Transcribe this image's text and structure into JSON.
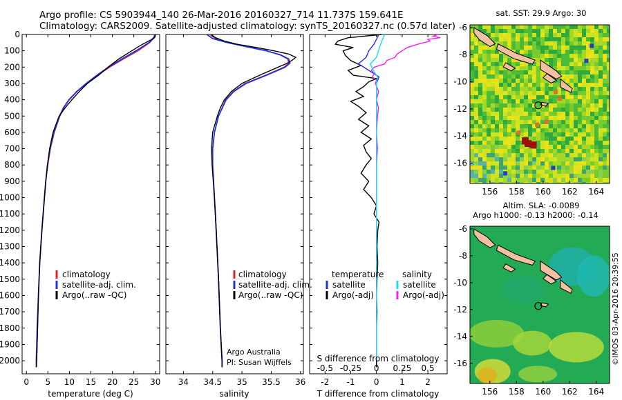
{
  "header": {
    "line1": "Argo profile: CS 5903944_140 26-Mar-2016 20160327_714 11.737S 159.641E",
    "line2": "Climatology: CARS2009. Satellite-adjusted climatology: synTS_20160327.nc (0.57d later)"
  },
  "colors": {
    "climatology": "#e02020",
    "satellite": "#1f2fe0",
    "argo": "#000000",
    "satellite_salinity": "#10e0f0",
    "argo_salinity_adj": "#f020f0"
  },
  "icons": [
    "map-marker-circle-icon"
  ],
  "credits": {
    "argo_australia": "Argo Australia",
    "pi": "PI: Susan Wijffels",
    "imos": "©IMOS 03-Apr-2016 20:39:55"
  },
  "chart_data": [
    {
      "type": "line",
      "name": "temperature-profile",
      "xlabel": "temperature (deg C)",
      "ylabel": "",
      "xlim": [
        -1,
        31
      ],
      "ylim": [
        2080,
        0
      ],
      "xticks": [
        "0",
        "5",
        "10",
        "15",
        "20",
        "25",
        "30"
      ],
      "yticks": [
        "0",
        "100",
        "200",
        "300",
        "400",
        "500",
        "600",
        "700",
        "800",
        "900",
        "1000",
        "1100",
        "1200",
        "1300",
        "1400",
        "1500",
        "1600",
        "1700",
        "1800",
        "1900",
        "2000"
      ],
      "legend": [
        "climatology",
        "satellite-adj. clim.",
        "Argo(..raw -QC)"
      ],
      "series": [
        {
          "name": "climatology",
          "y": [
            0,
            20,
            50,
            100,
            150,
            200,
            250,
            300,
            350,
            400,
            450,
            500,
            600,
            700,
            800,
            900,
            1000,
            1200,
            1400,
            1600,
            1800,
            2000
          ],
          "values": [
            29.8,
            29.7,
            28.7,
            26.0,
            22.6,
            19.4,
            16.6,
            14.0,
            11.8,
            10.0,
            8.7,
            7.8,
            6.5,
            5.6,
            5.0,
            4.5,
            4.2,
            3.6,
            3.1,
            2.8,
            2.6,
            2.4
          ]
        },
        {
          "name": "satellite-adj. clim.",
          "y": [
            0,
            20,
            50,
            100,
            150,
            200,
            250,
            300,
            350,
            400,
            450,
            500,
            600,
            700,
            800,
            900,
            1000,
            1200,
            1400,
            1600,
            1800,
            2000,
            2040
          ],
          "values": [
            29.9,
            29.8,
            28.5,
            25.5,
            22.2,
            19.1,
            16.4,
            13.9,
            11.7,
            9.9,
            8.6,
            7.7,
            6.4,
            5.5,
            4.9,
            4.5,
            4.2,
            3.6,
            3.1,
            2.8,
            2.5,
            2.3,
            2.3
          ]
        },
        {
          "name": "Argo(..raw -QC)",
          "y": [
            0,
            10,
            30,
            60,
            100,
            150,
            200,
            250,
            300,
            350,
            400,
            450,
            500,
            550,
            600,
            700,
            800,
            900,
            1000,
            1200,
            1400,
            1600,
            1800,
            2000,
            2040
          ],
          "values": [
            30.0,
            29.9,
            29.2,
            27.0,
            24.5,
            21.5,
            19.0,
            16.8,
            14.2,
            12.3,
            10.6,
            9.0,
            7.6,
            6.9,
            6.2,
            5.4,
            4.9,
            4.5,
            4.2,
            3.6,
            3.1,
            2.8,
            2.6,
            2.4,
            2.3
          ]
        }
      ]
    },
    {
      "type": "line",
      "name": "salinity-profile",
      "xlabel": "salinity",
      "ylabel": "",
      "xlim": [
        33.7,
        36.05
      ],
      "ylim": [
        2080,
        0
      ],
      "xticks": [
        "34",
        "34.5",
        "35",
        "35.5",
        "36"
      ],
      "legend": [
        "climatology",
        "satellite-adj. clim.",
        "Argo(..raw -QC)"
      ],
      "series": [
        {
          "name": "climatology",
          "y": [
            0,
            25,
            50,
            75,
            100,
            125,
            150,
            175,
            200,
            250,
            300,
            350,
            400,
            500,
            600,
            700,
            800,
            1000,
            1200,
            1500,
            1800,
            2000
          ],
          "values": [
            34.45,
            34.55,
            34.78,
            35.1,
            35.42,
            35.65,
            35.78,
            35.8,
            35.72,
            35.4,
            35.05,
            34.85,
            34.72,
            34.6,
            34.53,
            34.5,
            34.5,
            34.53,
            34.56,
            34.6,
            34.63,
            34.66
          ]
        },
        {
          "name": "satellite-adj. clim.",
          "y": [
            0,
            25,
            50,
            75,
            100,
            125,
            150,
            175,
            200,
            250,
            300,
            350,
            400,
            500,
            600,
            700,
            800,
            1000,
            1200,
            1500,
            1800,
            2000,
            2040
          ],
          "values": [
            34.4,
            34.5,
            34.75,
            35.08,
            35.42,
            35.66,
            35.8,
            35.82,
            35.74,
            35.42,
            35.07,
            34.86,
            34.73,
            34.6,
            34.53,
            34.5,
            34.5,
            34.53,
            34.56,
            34.6,
            34.63,
            34.66,
            34.66
          ]
        },
        {
          "name": "Argo(..raw -QC)",
          "y": [
            0,
            20,
            40,
            60,
            80,
            100,
            120,
            140,
            160,
            180,
            200,
            250,
            300,
            350,
            400,
            450,
            500,
            550,
            600,
            700,
            800,
            900,
            1000,
            1200,
            1500,
            1800,
            2000,
            2040
          ],
          "values": [
            34.47,
            34.55,
            34.7,
            34.92,
            35.25,
            35.55,
            35.8,
            35.92,
            35.85,
            35.75,
            35.62,
            35.3,
            35.0,
            34.82,
            34.7,
            34.63,
            34.58,
            34.54,
            34.5,
            34.48,
            34.49,
            34.51,
            34.53,
            34.56,
            34.6,
            34.63,
            34.66,
            34.66
          ]
        }
      ]
    },
    {
      "type": "line",
      "name": "difference-from-climatology",
      "xlabel": "T difference from climatology",
      "x2label": "S difference from climatology",
      "xlim": [
        -2.6,
        2.75
      ],
      "x2lim": [
        -0.65,
        0.6875
      ],
      "ylim": [
        2080,
        0
      ],
      "xticks": [
        "-2",
        "-1",
        "0",
        "1",
        "2"
      ],
      "x2ticks": [
        "-0.5",
        "-0.25",
        "0",
        "0.25",
        "0.5"
      ],
      "legend_headers": [
        "temperature",
        "salinity"
      ],
      "legend": [
        "satellite",
        "Argo(-adj)",
        "satellite",
        "Argo(-adj)"
      ],
      "series": [
        {
          "name": "satellite",
          "group": "temperature",
          "y": [
            0,
            30,
            60,
            100,
            140,
            180,
            220,
            260,
            300,
            350,
            400,
            500,
            600,
            800,
            1000,
            1400,
            2000
          ],
          "values": [
            0.1,
            0.0,
            -0.1,
            -0.3,
            -0.4,
            -0.7,
            -0.3,
            0.1,
            0.0,
            0.0,
            0.0,
            0.0,
            0.0,
            0.0,
            0.0,
            0.0,
            0.0
          ]
        },
        {
          "name": "Argo(-adj)",
          "group": "temperature",
          "y": [
            0,
            20,
            40,
            60,
            80,
            100,
            130,
            160,
            190,
            220,
            250,
            270,
            290,
            320,
            350,
            380,
            410,
            440,
            480,
            520,
            560,
            600,
            640,
            680,
            720,
            760,
            800,
            850,
            900,
            950,
            1000,
            1050,
            1100,
            1150,
            1200,
            1300,
            1400,
            1500,
            1600,
            1700,
            1800,
            1900,
            2000,
            2040
          ],
          "values": [
            0.2,
            -1.1,
            -1.5,
            -1.6,
            -0.9,
            -1.3,
            -1.2,
            -1.0,
            -0.6,
            -1.1,
            -0.9,
            0.0,
            -0.3,
            -0.5,
            -0.8,
            -0.5,
            -1.0,
            -0.7,
            -0.4,
            -0.7,
            -0.3,
            -0.6,
            -0.2,
            -0.5,
            -0.4,
            -0.2,
            -0.4,
            -0.6,
            -0.3,
            -0.5,
            -0.2,
            0.0,
            -0.1,
            0.1,
            0.05,
            0.02,
            0.05,
            0.02,
            0.0,
            0.02,
            0.0,
            0.0,
            0.0,
            0.0
          ]
        },
        {
          "name": "satellite",
          "group": "salinity",
          "y": [
            0,
            30,
            60,
            100,
            140,
            180,
            220,
            260,
            300,
            400,
            600,
            800,
            1000,
            1400,
            2000
          ],
          "values": [
            0.08,
            0.06,
            0.04,
            0.02,
            0.0,
            -0.06,
            -0.03,
            0.01,
            0.0,
            0.0,
            0.0,
            0.0,
            0.0,
            0.0,
            0.0
          ]
        },
        {
          "name": "Argo(-adj)",
          "group": "salinity",
          "y": [
            0,
            10,
            20,
            30,
            40,
            60,
            80,
            100,
            120,
            140,
            160,
            180,
            200,
            220,
            240,
            260,
            280,
            300,
            350,
            400,
            450,
            500,
            600,
            700,
            800,
            900,
            1000,
            1200,
            1400,
            1600,
            1800,
            2000
          ],
          "values": [
            0.6,
            0.55,
            0.62,
            0.5,
            0.52,
            0.4,
            0.3,
            0.25,
            0.2,
            0.18,
            0.1,
            0.08,
            -0.02,
            -0.05,
            -0.02,
            -0.04,
            0.0,
            -0.01,
            0.02,
            0.0,
            0.02,
            0.01,
            0.0,
            0.01,
            0.0,
            0.0,
            0.0,
            0.0,
            0.0,
            0.0,
            0.0,
            0.0
          ]
        }
      ]
    },
    {
      "type": "heatmap",
      "name": "sst-map",
      "title": "sat. SST: 29.9 Argo: 30",
      "xlim": [
        154.5,
        165
      ],
      "ylim": [
        -17.5,
        -5.8
      ],
      "xticks": [
        "156",
        "158",
        "160",
        "162",
        "164"
      ],
      "yticks": [
        "-6",
        "-8",
        "-10",
        "-12",
        "-14",
        "-16"
      ],
      "marker": {
        "lon": 159.641,
        "lat": -11.737
      }
    },
    {
      "type": "heatmap",
      "name": "sla-map",
      "title": "Altim. SLA: -0.0089",
      "subtitle": "Argo h1000: -0.13 h2000: -0.14",
      "xlim": [
        154.5,
        165
      ],
      "ylim": [
        -17.5,
        -5.8
      ],
      "xticks": [
        "156",
        "158",
        "160",
        "162",
        "164"
      ],
      "yticks": [
        "-6",
        "-8",
        "-10",
        "-12",
        "-14",
        "-16"
      ],
      "marker": {
        "lon": 159.641,
        "lat": -11.737
      }
    }
  ]
}
